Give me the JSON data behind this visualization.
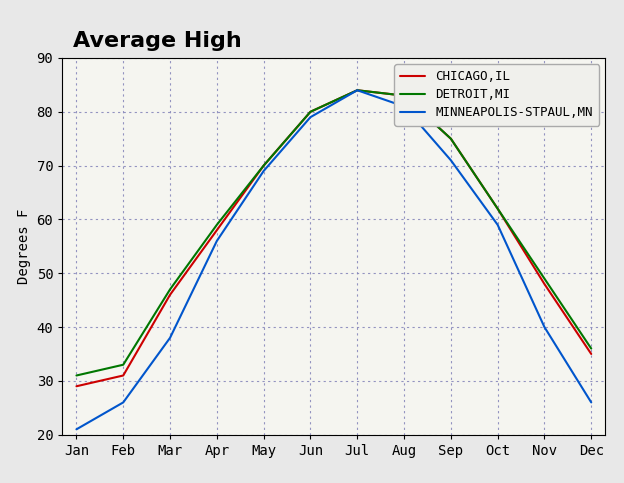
{
  "title": "Average High",
  "ylabel": "Degrees F",
  "months": [
    "Jan",
    "Feb",
    "Mar",
    "Apr",
    "May",
    "Jun",
    "Jul",
    "Aug",
    "Sep",
    "Oct",
    "Nov",
    "Dec"
  ],
  "series": [
    {
      "label": "CHICAGO,IL",
      "color": "#cc0000",
      "values": [
        29,
        31,
        46,
        58,
        70,
        80,
        84,
        83,
        75,
        62,
        48,
        35
      ]
    },
    {
      "label": "DETROIT,MI",
      "color": "#007700",
      "values": [
        31,
        33,
        47,
        59,
        70,
        80,
        84,
        83,
        75,
        62,
        49,
        36
      ]
    },
    {
      "label": "MINNEAPOLIS-STPAUL,MN",
      "color": "#0055cc",
      "values": [
        21,
        26,
        38,
        56,
        69,
        79,
        84,
        81,
        71,
        59,
        40,
        26
      ]
    }
  ],
  "ylim": [
    20,
    90
  ],
  "yticks": [
    20,
    30,
    40,
    50,
    60,
    70,
    80,
    90
  ],
  "fig_bg_color": "#e8e8e8",
  "plot_bg_color": "#f5f5f0",
  "grid_color": "#8888bb",
  "title_fontsize": 16,
  "axis_label_fontsize": 10,
  "tick_fontsize": 10,
  "legend_fontsize": 9,
  "linewidth": 1.5
}
